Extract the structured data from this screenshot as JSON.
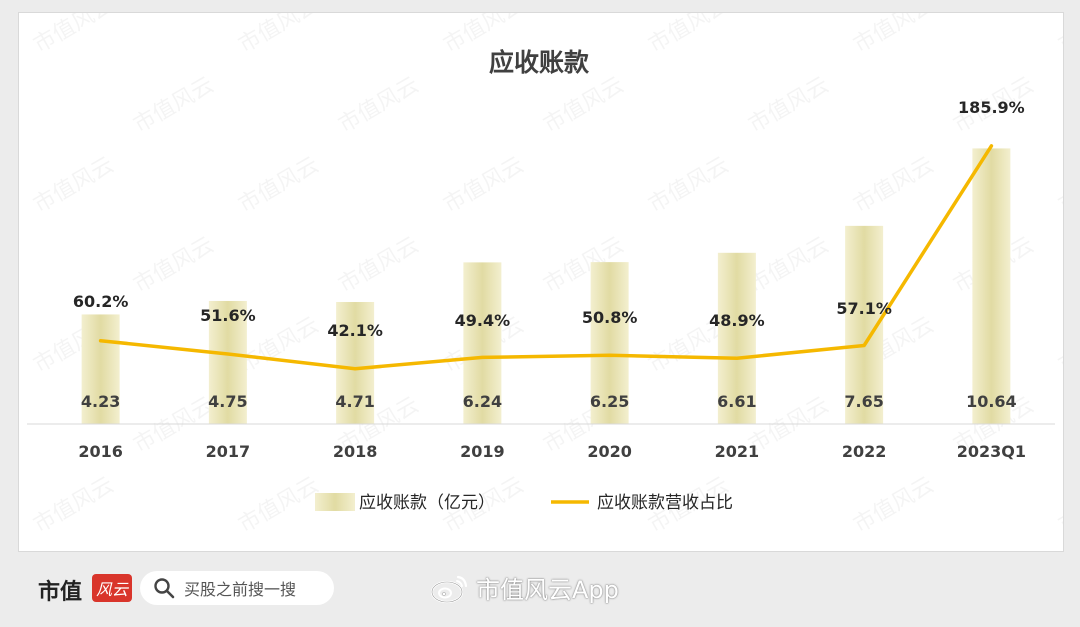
{
  "chart_data": {
    "type": "bar",
    "title": "应收账款",
    "categories": [
      "2016",
      "2017",
      "2018",
      "2019",
      "2020",
      "2021",
      "2022",
      "2023Q1"
    ],
    "series": [
      {
        "name": "应收账款（亿元）",
        "type": "bar",
        "values": [
          4.23,
          4.75,
          4.71,
          6.24,
          6.25,
          6.61,
          7.65,
          10.64
        ],
        "labels": [
          "4.23",
          "4.75",
          "4.71",
          "6.24",
          "6.25",
          "6.61",
          "7.65",
          "10.64"
        ],
        "color": "#e2dca4"
      },
      {
        "name": "应收账款营收占比",
        "type": "line",
        "values": [
          60.2,
          51.6,
          42.1,
          49.4,
          50.8,
          48.9,
          57.1,
          185.9
        ],
        "labels": [
          "60.2%",
          "51.6%",
          "42.1%",
          "49.4%",
          "50.8%",
          "48.9%",
          "57.1%",
          "185.9%"
        ],
        "color": "#f5b800"
      }
    ],
    "grid": false,
    "legend_position": "bottom"
  },
  "watermark": "市值风云",
  "footer": {
    "brand": "市值",
    "brand_seal": "风云",
    "search_icon": "search-icon",
    "search_text": "买股之前搜一搜",
    "weibo_icon": "weibo-icon",
    "weibo_text": "市值风云App"
  }
}
